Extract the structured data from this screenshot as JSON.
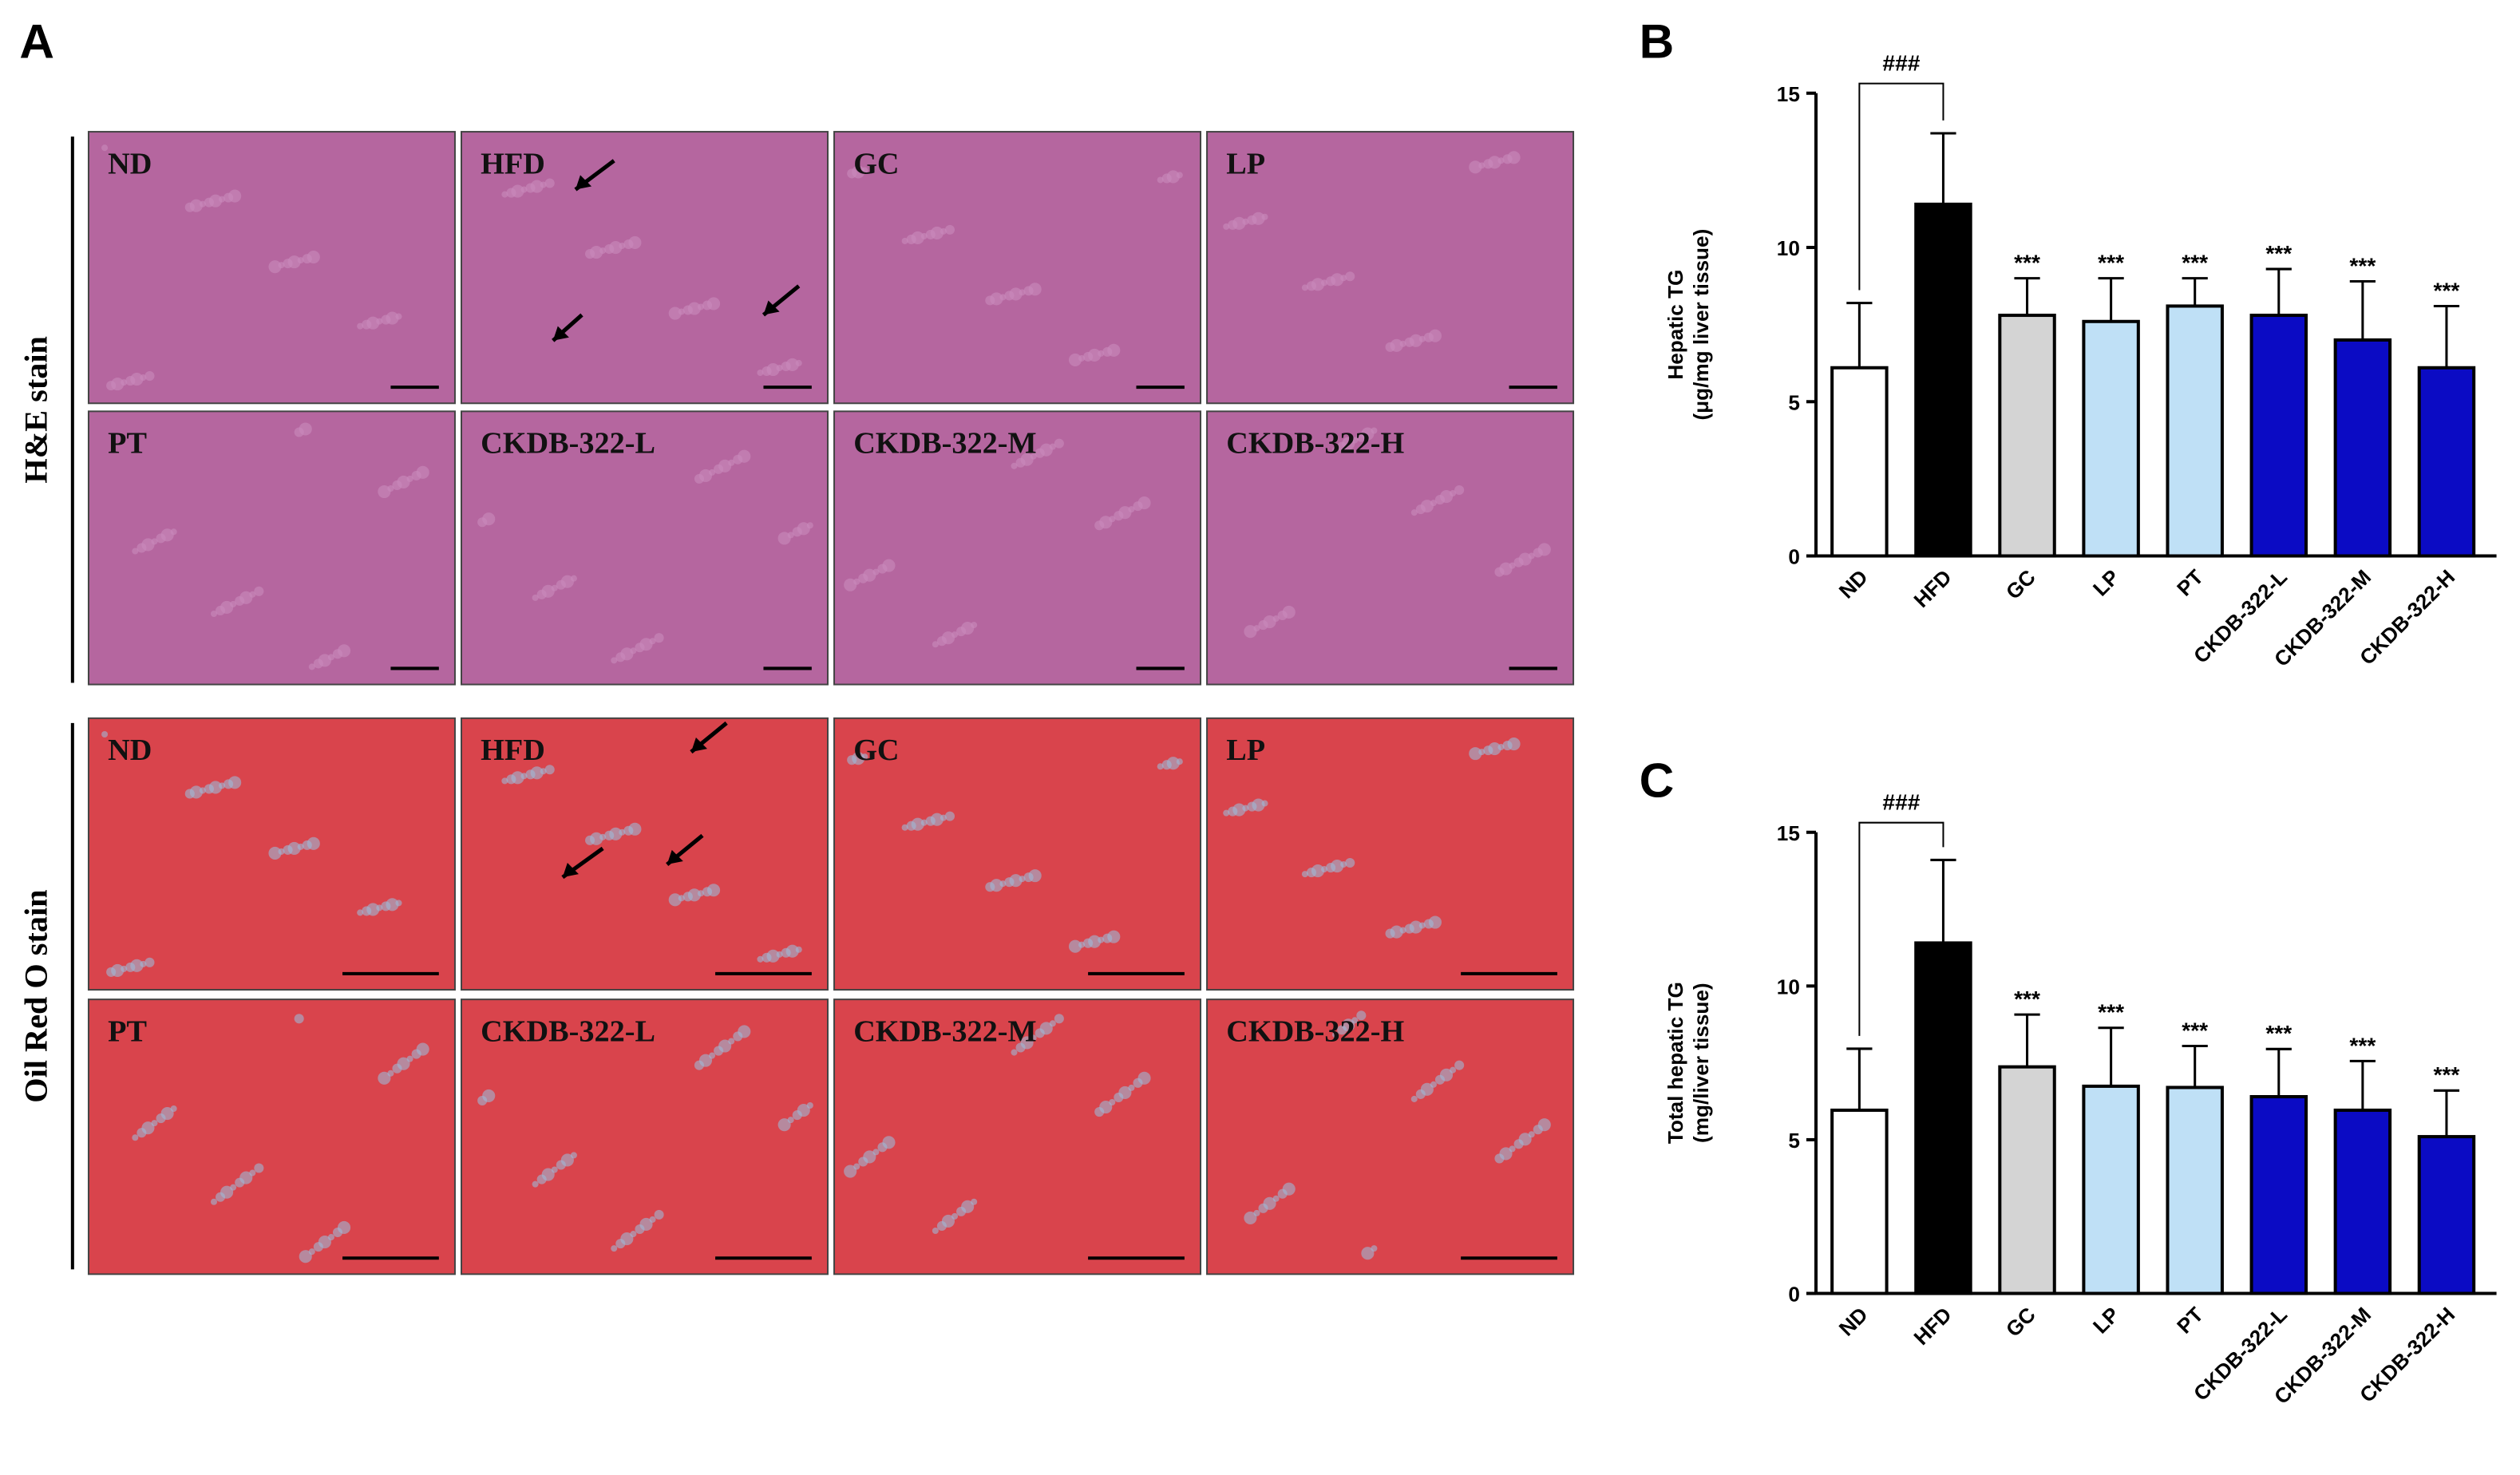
{
  "panel_a": {
    "label": "A",
    "he_row_label": "H&E stain",
    "oro_row_label": "Oil Red O stain",
    "he_labels": [
      "ND",
      "HFD",
      "GC",
      "LP",
      "PT",
      "CKDB-322-L",
      "CKDB-322-M",
      "CKDB-322-H"
    ],
    "oro_labels": [
      "ND",
      "HFD",
      "GC",
      "LP",
      "PT",
      "CKDB-322-L",
      "CKDB-322-M",
      "CKDB-322-H"
    ]
  },
  "chart_data": [
    {
      "type": "bar",
      "panel": "B",
      "ylabel": [
        "Hepatic TG",
        "(μg/mg liver tissue)"
      ],
      "categories": [
        "ND",
        "HFD",
        "GC",
        "LP",
        "PT",
        "CKDB-322-L",
        "CKDB-322-M",
        "CKDB-322-H"
      ],
      "values": [
        6.1,
        11.4,
        7.8,
        7.6,
        8.1,
        7.8,
        7.0,
        6.1
      ],
      "errors": [
        2.1,
        2.3,
        1.2,
        1.4,
        0.9,
        1.5,
        1.9,
        2.0
      ],
      "colors": [
        "#ffffff",
        "#000000",
        "#d4d4d4",
        "#bfe0f6",
        "#bfe0f6",
        "#0b0bc4",
        "#0b0bc4",
        "#0b0bc4"
      ],
      "significance": [
        null,
        null,
        "***",
        "***",
        "***",
        "***",
        "***",
        "***"
      ],
      "bracket_label": "###",
      "ylim": [
        0,
        15
      ],
      "yticks": [
        0,
        5,
        10,
        15
      ]
    },
    {
      "type": "bar",
      "panel": "C",
      "ylabel": [
        "Total hepatic TG",
        "(mg/liver tissue)"
      ],
      "categories": [
        "ND",
        "HFD",
        "GC",
        "LP",
        "PT",
        "CKDB-322-L",
        "CKDB-322-M",
        "CKDB-322-H"
      ],
      "values": [
        5.96,
        11.4,
        7.37,
        6.74,
        6.7,
        6.4,
        5.96,
        5.1
      ],
      "errors": [
        2.0,
        2.7,
        1.7,
        1.9,
        1.35,
        1.55,
        1.6,
        1.5
      ],
      "colors": [
        "#ffffff",
        "#000000",
        "#d4d4d4",
        "#bfe0f6",
        "#bfe0f6",
        "#0b0bc4",
        "#0b0bc4",
        "#0b0bc4"
      ],
      "significance": [
        null,
        null,
        "***",
        "***",
        "***",
        "***",
        "***",
        "***"
      ],
      "bracket_label": "###",
      "ylim": [
        0,
        15
      ],
      "yticks": [
        0,
        5,
        10,
        15
      ]
    }
  ]
}
